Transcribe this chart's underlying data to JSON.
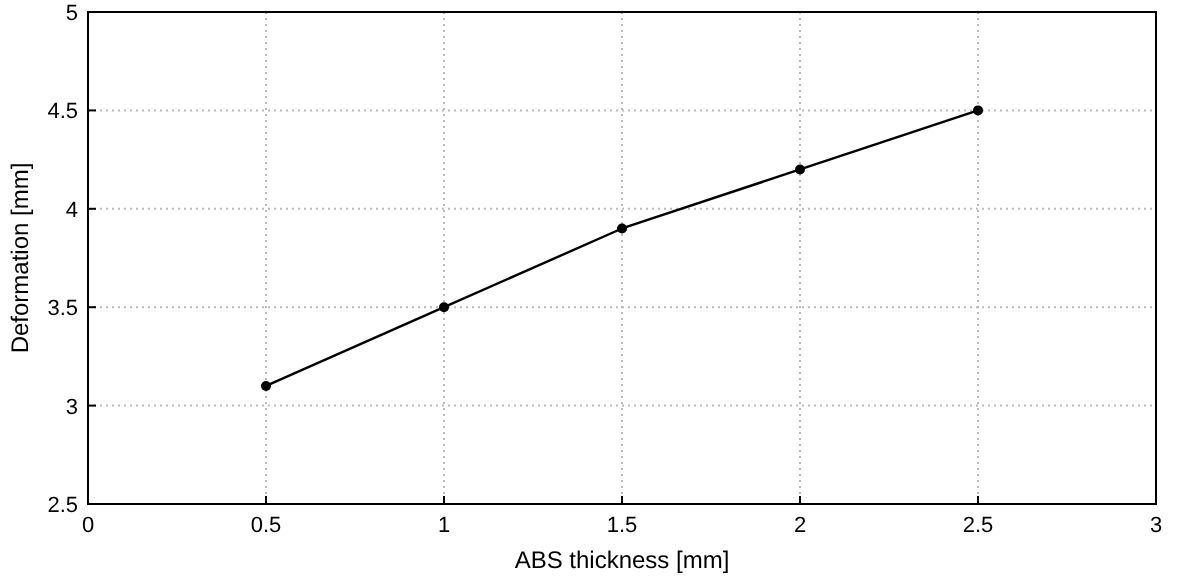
{
  "chart_data": {
    "type": "line",
    "xlabel": "ABS thickness [mm]",
    "ylabel": "Deformation [mm]",
    "x": [
      0.5,
      1,
      1.5,
      2,
      2.5
    ],
    "series": [
      {
        "color": "#000000",
        "values": [
          3.1,
          3.5,
          3.9,
          4.2,
          4.5
        ]
      }
    ],
    "xlim": [
      0,
      3
    ],
    "xticks": [
      0,
      0.5,
      1,
      1.5,
      2,
      2.5,
      3
    ],
    "ylim": [
      2.5,
      5
    ],
    "yticks": [
      2.5,
      3,
      3.5,
      4,
      4.5,
      5
    ],
    "grid": true,
    "marker": "circle",
    "line_style": "solid"
  }
}
